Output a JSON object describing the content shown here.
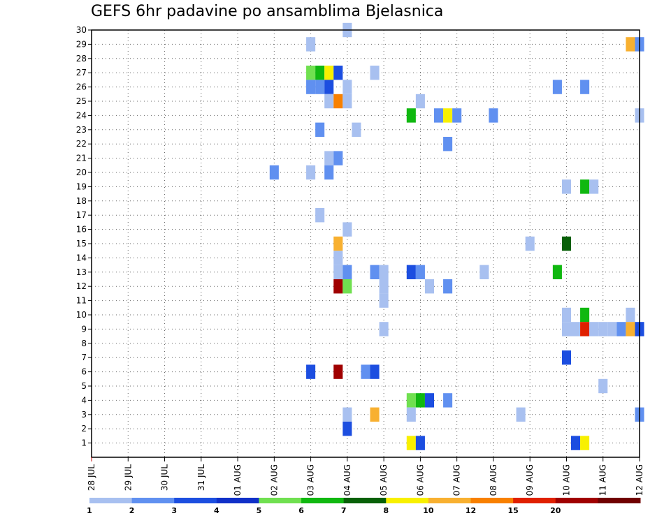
{
  "chart_data": {
    "type": "heatmap",
    "title": "GEFS 6hr padavine po ansamblima Bjelasnica",
    "xlabel": "",
    "ylabel": "",
    "x_tick_labels": [
      "28 JUL",
      "29 JUL",
      "30 JUL",
      "31 JUL",
      "01 AUG",
      "02 AUG",
      "03 AUG",
      "04 AUG",
      "05 AUG",
      "06 AUG",
      "07 AUG",
      "08 AUG",
      "09 AUG",
      "10 AUG",
      "11 AUG",
      "12 AUG"
    ],
    "xlim_days": [
      0,
      15
    ],
    "time_step_hours": 6,
    "y_tick_labels": [
      "1",
      "2",
      "3",
      "4",
      "5",
      "6",
      "7",
      "8",
      "9",
      "10",
      "11",
      "12",
      "13",
      "14",
      "15",
      "16",
      "17",
      "18",
      "19",
      "20",
      "21",
      "22",
      "23",
      "24",
      "25",
      "26",
      "27",
      "28",
      "29",
      "30"
    ],
    "ylim": [
      0,
      30
    ],
    "grid": true,
    "legend": {
      "placement": "bottom",
      "labels": [
        "1",
        "2",
        "3",
        "4",
        "5",
        "6",
        "7",
        "8",
        "10",
        "12",
        "15",
        "20"
      ],
      "colors": [
        "#a8c0f0",
        "#6090f0",
        "#1c4ee0",
        "#1030c8",
        "#70e050",
        "#10b810",
        "#086008",
        "#f8f000",
        "#f8b030",
        "#f88000",
        "#e02000",
        "#a00000",
        "#700000"
      ]
    },
    "cells": [
      {
        "member": 30,
        "time": "04 AUG 00Z",
        "color": "#a8c0f0"
      },
      {
        "member": 29,
        "time": "03 AUG 00Z",
        "color": "#a8c0f0"
      },
      {
        "member": 29,
        "time": "11 AUG 18Z",
        "color": "#f8b030"
      },
      {
        "member": 29,
        "time": "12 AUG 00Z",
        "color": "#6090f0"
      },
      {
        "member": 27,
        "time": "03 AUG 00Z",
        "color": "#70e050"
      },
      {
        "member": 27,
        "time": "03 AUG 06Z",
        "color": "#10b810"
      },
      {
        "member": 27,
        "time": "03 AUG 12Z",
        "color": "#f8f000"
      },
      {
        "member": 27,
        "time": "03 AUG 18Z",
        "color": "#1c4ee0"
      },
      {
        "member": 27,
        "time": "04 AUG 18Z",
        "color": "#a8c0f0"
      },
      {
        "member": 26,
        "time": "03 AUG 00Z",
        "color": "#6090f0"
      },
      {
        "member": 26,
        "time": "03 AUG 06Z",
        "color": "#6090f0"
      },
      {
        "member": 26,
        "time": "03 AUG 12Z",
        "color": "#1c4ee0"
      },
      {
        "member": 26,
        "time": "04 AUG 00Z",
        "color": "#a8c0f0"
      },
      {
        "member": 26,
        "time": "09 AUG 18Z",
        "color": "#6090f0"
      },
      {
        "member": 26,
        "time": "10 AUG 12Z",
        "color": "#6090f0"
      },
      {
        "member": 25,
        "time": "03 AUG 12Z",
        "color": "#a8c0f0"
      },
      {
        "member": 25,
        "time": "03 AUG 18Z",
        "color": "#f88000"
      },
      {
        "member": 25,
        "time": "04 AUG 00Z",
        "color": "#a8c0f0"
      },
      {
        "member": 25,
        "time": "06 AUG 00Z",
        "color": "#a8c0f0"
      },
      {
        "member": 24,
        "time": "05 AUG 18Z",
        "color": "#10b810"
      },
      {
        "member": 24,
        "time": "06 AUG 12Z",
        "color": "#6090f0"
      },
      {
        "member": 24,
        "time": "06 AUG 18Z",
        "color": "#f8f000"
      },
      {
        "member": 24,
        "time": "07 AUG 00Z",
        "color": "#6090f0"
      },
      {
        "member": 24,
        "time": "08 AUG 00Z",
        "color": "#6090f0"
      },
      {
        "member": 24,
        "time": "12 AUG 00Z",
        "color": "#a8c0f0"
      },
      {
        "member": 23,
        "time": "03 AUG 06Z",
        "color": "#6090f0"
      },
      {
        "member": 23,
        "time": "04 AUG 06Z",
        "color": "#a8c0f0"
      },
      {
        "member": 22,
        "time": "06 AUG 18Z",
        "color": "#6090f0"
      },
      {
        "member": 21,
        "time": "03 AUG 12Z",
        "color": "#a8c0f0"
      },
      {
        "member": 21,
        "time": "03 AUG 18Z",
        "color": "#6090f0"
      },
      {
        "member": 20,
        "time": "02 AUG 00Z",
        "color": "#6090f0"
      },
      {
        "member": 20,
        "time": "03 AUG 00Z",
        "color": "#a8c0f0"
      },
      {
        "member": 20,
        "time": "03 AUG 12Z",
        "color": "#6090f0"
      },
      {
        "member": 19,
        "time": "10 AUG 00Z",
        "color": "#a8c0f0"
      },
      {
        "member": 19,
        "time": "10 AUG 12Z",
        "color": "#10b810"
      },
      {
        "member": 19,
        "time": "10 AUG 18Z",
        "color": "#a8c0f0"
      },
      {
        "member": 17,
        "time": "03 AUG 06Z",
        "color": "#a8c0f0"
      },
      {
        "member": 16,
        "time": "04 AUG 00Z",
        "color": "#a8c0f0"
      },
      {
        "member": 15,
        "time": "03 AUG 18Z",
        "color": "#f8b030"
      },
      {
        "member": 15,
        "time": "09 AUG 00Z",
        "color": "#a8c0f0"
      },
      {
        "member": 15,
        "time": "10 AUG 00Z",
        "color": "#086008"
      },
      {
        "member": 14,
        "time": "03 AUG 18Z",
        "color": "#a8c0f0"
      },
      {
        "member": 13,
        "time": "03 AUG 18Z",
        "color": "#a8c0f0"
      },
      {
        "member": 13,
        "time": "04 AUG 00Z",
        "color": "#6090f0"
      },
      {
        "member": 13,
        "time": "04 AUG 18Z",
        "color": "#6090f0"
      },
      {
        "member": 13,
        "time": "05 AUG 00Z",
        "color": "#a8c0f0"
      },
      {
        "member": 13,
        "time": "05 AUG 18Z",
        "color": "#1c4ee0"
      },
      {
        "member": 13,
        "time": "06 AUG 00Z",
        "color": "#6090f0"
      },
      {
        "member": 13,
        "time": "07 AUG 18Z",
        "color": "#a8c0f0"
      },
      {
        "member": 13,
        "time": "09 AUG 18Z",
        "color": "#10b810"
      },
      {
        "member": 12,
        "time": "03 AUG 18Z",
        "color": "#a00000"
      },
      {
        "member": 12,
        "time": "04 AUG 00Z",
        "color": "#70e050"
      },
      {
        "member": 12,
        "time": "05 AUG 00Z",
        "color": "#a8c0f0"
      },
      {
        "member": 12,
        "time": "06 AUG 06Z",
        "color": "#a8c0f0"
      },
      {
        "member": 12,
        "time": "06 AUG 18Z",
        "color": "#6090f0"
      },
      {
        "member": 11,
        "time": "05 AUG 00Z",
        "color": "#a8c0f0"
      },
      {
        "member": 10,
        "time": "10 AUG 00Z",
        "color": "#a8c0f0"
      },
      {
        "member": 10,
        "time": "10 AUG 12Z",
        "color": "#10b810"
      },
      {
        "member": 10,
        "time": "11 AUG 18Z",
        "color": "#a8c0f0"
      },
      {
        "member": 9,
        "time": "05 AUG 00Z",
        "color": "#a8c0f0"
      },
      {
        "member": 9,
        "time": "10 AUG 00Z",
        "color": "#a8c0f0"
      },
      {
        "member": 9,
        "time": "10 AUG 06Z",
        "color": "#a8c0f0"
      },
      {
        "member": 9,
        "time": "10 AUG 12Z",
        "color": "#e02000"
      },
      {
        "member": 9,
        "time": "10 AUG 18Z",
        "color": "#a8c0f0"
      },
      {
        "member": 9,
        "time": "11 AUG 00Z",
        "color": "#a8c0f0"
      },
      {
        "member": 9,
        "time": "11 AUG 06Z",
        "color": "#a8c0f0"
      },
      {
        "member": 9,
        "time": "11 AUG 12Z",
        "color": "#6090f0"
      },
      {
        "member": 9,
        "time": "11 AUG 18Z",
        "color": "#f8b030"
      },
      {
        "member": 9,
        "time": "12 AUG 00Z",
        "color": "#1c4ee0"
      },
      {
        "member": 7,
        "time": "10 AUG 00Z",
        "color": "#1c4ee0"
      },
      {
        "member": 6,
        "time": "03 AUG 00Z",
        "color": "#1c4ee0"
      },
      {
        "member": 6,
        "time": "03 AUG 18Z",
        "color": "#a00000"
      },
      {
        "member": 6,
        "time": "04 AUG 12Z",
        "color": "#6090f0"
      },
      {
        "member": 6,
        "time": "04 AUG 18Z",
        "color": "#1c4ee0"
      },
      {
        "member": 5,
        "time": "11 AUG 00Z",
        "color": "#a8c0f0"
      },
      {
        "member": 4,
        "time": "05 AUG 18Z",
        "color": "#70e050"
      },
      {
        "member": 4,
        "time": "06 AUG 00Z",
        "color": "#10b810"
      },
      {
        "member": 4,
        "time": "06 AUG 06Z",
        "color": "#1c4ee0"
      },
      {
        "member": 4,
        "time": "06 AUG 18Z",
        "color": "#6090f0"
      },
      {
        "member": 3,
        "time": "04 AUG 00Z",
        "color": "#a8c0f0"
      },
      {
        "member": 3,
        "time": "04 AUG 18Z",
        "color": "#f8b030"
      },
      {
        "member": 3,
        "time": "05 AUG 18Z",
        "color": "#a8c0f0"
      },
      {
        "member": 3,
        "time": "08 AUG 18Z",
        "color": "#a8c0f0"
      },
      {
        "member": 3,
        "time": "12 AUG 00Z",
        "color": "#6090f0"
      },
      {
        "member": 2,
        "time": "04 AUG 00Z",
        "color": "#1c4ee0"
      },
      {
        "member": 1,
        "time": "05 AUG 18Z",
        "color": "#f8f000"
      },
      {
        "member": 1,
        "time": "06 AUG 00Z",
        "color": "#1c4ee0"
      },
      {
        "member": 1,
        "time": "10 AUG 06Z",
        "color": "#1c4ee0"
      },
      {
        "member": 1,
        "time": "10 AUG 12Z",
        "color": "#f8f000"
      }
    ]
  }
}
